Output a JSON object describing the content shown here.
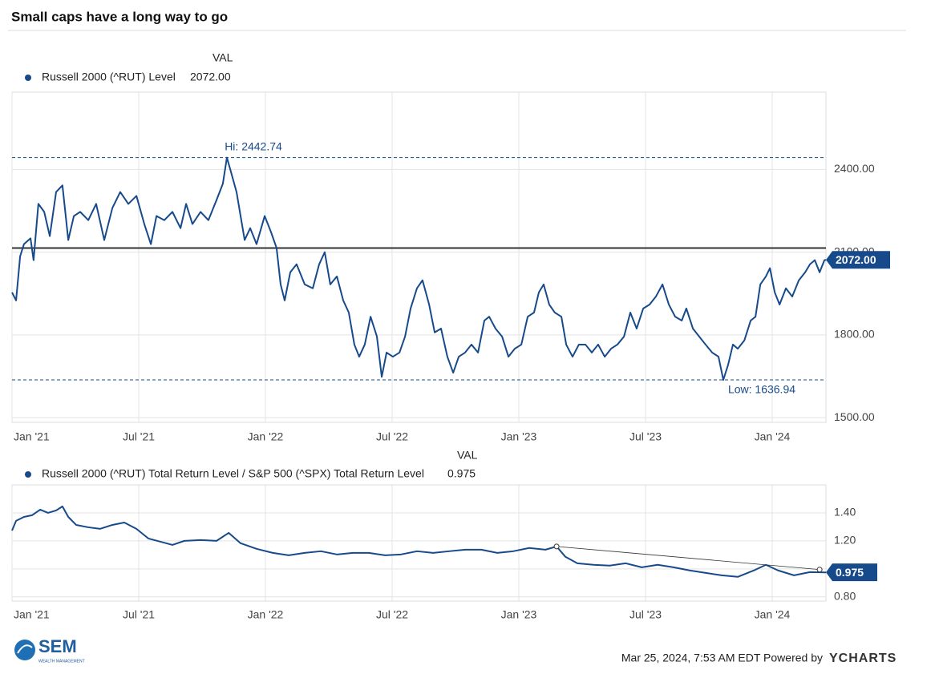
{
  "title": "Small caps have a long way to go",
  "chart_data": [
    {
      "type": "line",
      "value_header": "VAL",
      "current": {
        "value": 2072,
        "label": "2072.00"
      },
      "xlim": [
        2021.0,
        2024.212
      ],
      "xticks": [
        {
          "value": 2021.0,
          "label": "Jan '21"
        },
        {
          "value": 2021.5,
          "label": "Jul '21"
        },
        {
          "value": 2022.0,
          "label": "Jan '22"
        },
        {
          "value": 2022.5,
          "label": "Jul '22"
        },
        {
          "value": 2023.0,
          "label": "Jan '23"
        },
        {
          "value": 2023.5,
          "label": "Jul '23"
        },
        {
          "value": 2024.0,
          "label": "Jan '24"
        }
      ],
      "ylim": [
        1483,
        2680
      ],
      "yticks": [
        {
          "value": 1500,
          "label": "1500.00"
        },
        {
          "value": 1800,
          "label": "1800.00"
        },
        {
          "value": 2100,
          "label": "2100.00"
        },
        {
          "value": 2400,
          "label": "2400.00"
        }
      ],
      "grid": true,
      "annotations": [
        {
          "value": 2442.74,
          "label": "Hi: 2442.74"
        },
        {
          "value": 1636.94,
          "label": "Low: 1636.94"
        }
      ],
      "reference_line": 2115,
      "x": [
        2021.0,
        2021.016,
        2021.032,
        2021.047,
        2021.073,
        2021.085,
        2021.104,
        2021.127,
        2021.149,
        2021.174,
        2021.199,
        2021.222,
        2021.244,
        2021.269,
        2021.301,
        2021.332,
        2021.364,
        2021.396,
        2021.427,
        2021.459,
        2021.491,
        2021.522,
        2021.548,
        2021.57,
        2021.601,
        2021.633,
        2021.665,
        2021.687,
        2021.712,
        2021.744,
        2021.775,
        2021.807,
        2021.832,
        2021.848,
        2021.864,
        2021.886,
        2021.902,
        2021.918,
        2021.94,
        2021.965,
        2021.997,
        2022.022,
        2022.044,
        2022.06,
        2022.076,
        2022.098,
        2022.123,
        2022.155,
        2022.187,
        2022.212,
        2022.234,
        2022.256,
        2022.282,
        2022.307,
        2022.329,
        2022.351,
        2022.37,
        2022.392,
        2022.415,
        2022.44,
        2022.459,
        2022.478,
        2022.503,
        2022.529,
        2022.551,
        2022.573,
        2022.598,
        2022.62,
        2022.646,
        2022.668,
        2022.693,
        2022.718,
        2022.741,
        2022.763,
        2022.788,
        2022.813,
        2022.839,
        2022.864,
        2022.883,
        2022.908,
        2022.934,
        2022.959,
        2022.984,
        2023.01,
        2023.035,
        2023.06,
        2023.079,
        2023.098,
        2023.12,
        2023.142,
        2023.168,
        2023.187,
        2023.212,
        2023.237,
        2023.263,
        2023.288,
        2023.313,
        2023.339,
        2023.364,
        2023.389,
        2023.415,
        2023.44,
        2023.465,
        2023.491,
        2023.516,
        2023.541,
        2023.567,
        2023.592,
        2023.617,
        2023.643,
        2023.661,
        2023.687,
        2023.712,
        2023.737,
        2023.763,
        2023.788,
        2023.807,
        2023.826,
        2023.845,
        2023.864,
        2023.89,
        2023.915,
        2023.934,
        2023.953,
        2023.975,
        2023.991,
        2024.01,
        2024.029,
        2024.054,
        2024.079,
        2024.105,
        2024.13,
        2024.149,
        2024.168,
        2024.187,
        2024.206,
        2024.212
      ],
      "series": [
        {
          "name": "Russell 2000 (^RUT) Level",
          "color": "#174a8b",
          "values": [
            1954,
            1925,
            2085,
            2129,
            2150,
            2071,
            2275,
            2246,
            2158,
            2318,
            2342,
            2144,
            2231,
            2246,
            2216,
            2275,
            2144,
            2260,
            2318,
            2275,
            2304,
            2202,
            2129,
            2231,
            2216,
            2246,
            2187,
            2275,
            2202,
            2246,
            2216,
            2289,
            2348,
            2442.74,
            2391,
            2318,
            2231,
            2144,
            2187,
            2129,
            2231,
            2173,
            2115,
            1983,
            1925,
            2027,
            2056,
            1983,
            1969,
            2056,
            2100,
            1983,
            2012,
            1925,
            1881,
            1765,
            1721,
            1765,
            1866,
            1794,
            1648,
            1736,
            1721,
            1736,
            1794,
            1896,
            1969,
            1998,
            1910,
            1809,
            1823,
            1721,
            1663,
            1721,
            1736,
            1765,
            1736,
            1852,
            1866,
            1823,
            1794,
            1721,
            1750,
            1765,
            1866,
            1881,
            1954,
            1983,
            1910,
            1881,
            1866,
            1765,
            1721,
            1765,
            1765,
            1736,
            1765,
            1721,
            1750,
            1765,
            1794,
            1881,
            1823,
            1896,
            1910,
            1939,
            1983,
            1910,
            1866,
            1852,
            1896,
            1823,
            1794,
            1765,
            1736,
            1721,
            1636.94,
            1692,
            1765,
            1750,
            1780,
            1852,
            1866,
            1983,
            2012,
            2042,
            1954,
            1910,
            1969,
            1939,
            1998,
            2027,
            2056,
            2071,
            2027,
            2071,
            2072
          ]
        }
      ]
    },
    {
      "type": "line",
      "value_header": "VAL",
      "current": 0.975,
      "xlim": [
        2021.0,
        2024.212
      ],
      "xticks": [
        {
          "value": 2021.0,
          "label": "Jan '21"
        },
        {
          "value": 2021.5,
          "label": "Jul '21"
        },
        {
          "value": 2022.0,
          "label": "Jan '22"
        },
        {
          "value": 2022.5,
          "label": "Jul '22"
        },
        {
          "value": 2023.0,
          "label": "Jan '23"
        },
        {
          "value": 2023.5,
          "label": "Jul '23"
        },
        {
          "value": 2024.0,
          "label": "Jan '24"
        }
      ],
      "ylim": [
        0.77,
        1.6
      ],
      "yticks": [
        {
          "value": 0.8,
          "label": "0.80"
        },
        {
          "value": 1.0,
          "label": "1.00"
        },
        {
          "value": 1.2,
          "label": "1.20"
        },
        {
          "value": 1.4,
          "label": "1.40"
        }
      ],
      "grid": true,
      "trendline": {
        "x": [
          2023.149,
          2024.187
        ],
        "y": [
          1.16,
          0.995
        ]
      },
      "x": [
        2021.0,
        2021.016,
        2021.047,
        2021.079,
        2021.111,
        2021.142,
        2021.174,
        2021.199,
        2021.222,
        2021.253,
        2021.301,
        2021.348,
        2021.396,
        2021.443,
        2021.491,
        2021.538,
        2021.586,
        2021.633,
        2021.68,
        2021.744,
        2021.807,
        2021.855,
        2021.902,
        2021.965,
        2022.029,
        2022.092,
        2022.155,
        2022.219,
        2022.282,
        2022.345,
        2022.408,
        2022.472,
        2022.535,
        2022.598,
        2022.662,
        2022.725,
        2022.788,
        2022.852,
        2022.915,
        2022.978,
        2023.041,
        2023.105,
        2023.149,
        2023.184,
        2023.231,
        2023.295,
        2023.358,
        2023.421,
        2023.485,
        2023.548,
        2023.611,
        2023.674,
        2023.738,
        2023.801,
        2023.864,
        2023.928,
        2023.975,
        2024.023,
        2024.086,
        2024.149,
        2024.212
      ],
      "series": [
        {
          "name": "Russell 2000 (^RUT) Total Return Level / S&P 500 (^SPX) Total Return Level",
          "color": "#174a8b",
          "values": [
            1.274,
            1.343,
            1.371,
            1.383,
            1.423,
            1.4,
            1.417,
            1.446,
            1.371,
            1.314,
            1.297,
            1.286,
            1.314,
            1.331,
            1.286,
            1.217,
            1.194,
            1.171,
            1.2,
            1.206,
            1.2,
            1.257,
            1.183,
            1.143,
            1.114,
            1.097,
            1.114,
            1.126,
            1.103,
            1.114,
            1.114,
            1.097,
            1.103,
            1.126,
            1.114,
            1.126,
            1.137,
            1.137,
            1.114,
            1.126,
            1.149,
            1.137,
            1.16,
            1.086,
            1.04,
            1.029,
            1.023,
            1.04,
            1.011,
            1.029,
            1.011,
            0.989,
            0.971,
            0.954,
            0.943,
            0.989,
            1.029,
            0.989,
            0.954,
            0.977,
            0.975
          ]
        }
      ]
    }
  ],
  "footer": {
    "timestamp": "Mar 25, 2024, 7:53 AM EDT Powered by",
    "brand": "YCHARTS"
  },
  "logo": {
    "name": "SEM",
    "tagline": "WEALTH MANAGEMENT"
  }
}
